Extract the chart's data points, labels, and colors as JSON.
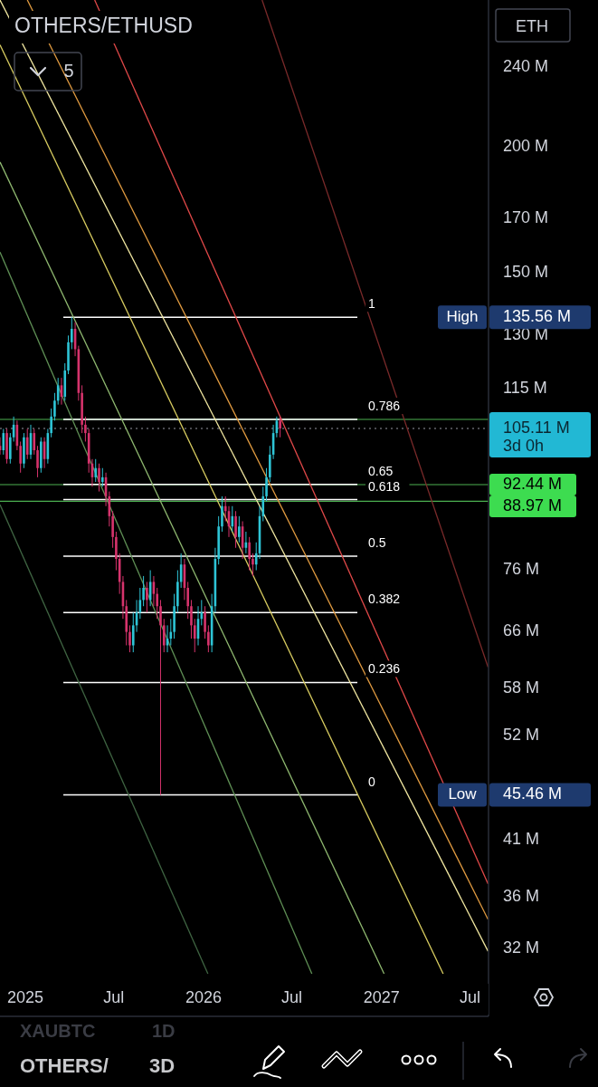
{
  "chart_data": {
    "type": "candlestick",
    "title": "OTHERS/ETHUSD",
    "log": true,
    "xlim": [
      "2024-11-10",
      "2027-08-08"
    ],
    "xticks": [
      {
        "value": "2025-01-01",
        "label": "2025"
      },
      {
        "value": "2025-07-01",
        "label": "Jul"
      },
      {
        "value": "2026-01-01",
        "label": "2026"
      },
      {
        "value": "2026-07-01",
        "label": "Jul"
      },
      {
        "value": "2027-01-01",
        "label": "2027"
      },
      {
        "value": "2027-07-01",
        "label": "Jul"
      }
    ],
    "ylim": [
      27.4,
      280
    ],
    "yticks": [
      {
        "value": 32,
        "label": "32 M"
      },
      {
        "value": 36,
        "label": "36 M"
      },
      {
        "value": 41,
        "label": "41 M"
      },
      {
        "value": 52,
        "label": "52 M"
      },
      {
        "value": 58,
        "label": "58 M"
      },
      {
        "value": 66,
        "label": "66 M"
      },
      {
        "value": 76,
        "label": "76 M"
      },
      {
        "value": 115,
        "label": "115 M"
      },
      {
        "value": 130,
        "label": "130 M"
      },
      {
        "value": 150,
        "label": "150 M"
      },
      {
        "value": 170,
        "label": "170 M"
      },
      {
        "value": 200,
        "label": "200 M"
      },
      {
        "value": 240,
        "label": "240 M"
      }
    ],
    "x": [
      "2024-11-10",
      "2024-11-17",
      "2024-11-24",
      "2024-12-01",
      "2024-12-08",
      "2024-12-15",
      "2024-12-22",
      "2024-12-29",
      "2025-01-05",
      "2025-01-12",
      "2025-01-19",
      "2025-01-26",
      "2025-02-02",
      "2025-02-09",
      "2025-02-16",
      "2025-02-23",
      "2025-03-02",
      "2025-03-09",
      "2025-03-16",
      "2025-03-23",
      "2025-03-30",
      "2025-04-06",
      "2025-04-13",
      "2025-04-20",
      "2025-04-27",
      "2025-05-04",
      "2025-05-11",
      "2025-05-18",
      "2025-05-25",
      "2025-06-01",
      "2025-06-08",
      "2025-06-15",
      "2025-06-22",
      "2025-06-29",
      "2025-07-06",
      "2025-07-13",
      "2025-07-20",
      "2025-07-27",
      "2025-08-03",
      "2025-08-10",
      "2025-08-17",
      "2025-08-24",
      "2025-08-31",
      "2025-09-07",
      "2025-09-14",
      "2025-09-21",
      "2025-09-28",
      "2025-10-05",
      "2025-10-12",
      "2025-10-19",
      "2025-10-26",
      "2025-11-02",
      "2025-11-09",
      "2025-11-16",
      "2025-11-23",
      "2025-11-30",
      "2025-12-07",
      "2025-12-14",
      "2025-12-21",
      "2025-12-28",
      "2026-01-04",
      "2026-01-11",
      "2026-01-18",
      "2026-01-25",
      "2026-02-01",
      "2026-02-08",
      "2026-02-15",
      "2026-02-22",
      "2026-03-01",
      "2026-03-08",
      "2026-03-15",
      "2026-03-22",
      "2026-03-29",
      "2026-04-05",
      "2026-04-12",
      "2026-04-19",
      "2026-04-26",
      "2026-05-03",
      "2026-05-10",
      "2026-05-17",
      "2026-05-24",
      "2026-05-31",
      "2026-06-07"
    ],
    "ohlc": [
      [
        101,
        103,
        99,
        100
      ],
      [
        100,
        105,
        99,
        104
      ],
      [
        104,
        105,
        97,
        98
      ],
      [
        98,
        104,
        97,
        103
      ],
      [
        103,
        108,
        102,
        106
      ],
      [
        106,
        107,
        100,
        101
      ],
      [
        101,
        102,
        95,
        97
      ],
      [
        97,
        104,
        96,
        103
      ],
      [
        103,
        105,
        98,
        99
      ],
      [
        99,
        106,
        98,
        104
      ],
      [
        104,
        105,
        99,
        100
      ],
      [
        100,
        101,
        94,
        96
      ],
      [
        96,
        103,
        95,
        102
      ],
      [
        102,
        103,
        96,
        98
      ],
      [
        98,
        105,
        97,
        104
      ],
      [
        104,
        110,
        103,
        108
      ],
      [
        108,
        114,
        107,
        112
      ],
      [
        112,
        118,
        111,
        116
      ],
      [
        116,
        118,
        111,
        113
      ],
      [
        113,
        122,
        112,
        120
      ],
      [
        120,
        130,
        119,
        128
      ],
      [
        128,
        135.56,
        126,
        132
      ],
      [
        132,
        134,
        124,
        126
      ],
      [
        126,
        127,
        112,
        114
      ],
      [
        114,
        116,
        104,
        106
      ],
      [
        106,
        108,
        102,
        104
      ],
      [
        104,
        105,
        95,
        97
      ],
      [
        97,
        98,
        92,
        94
      ],
      [
        94,
        98,
        93,
        96
      ],
      [
        96,
        97,
        91,
        93
      ],
      [
        93,
        96,
        92,
        94
      ],
      [
        94,
        95,
        88,
        90
      ],
      [
        90,
        91,
        84,
        86
      ],
      [
        86,
        87,
        80,
        82
      ],
      [
        82,
        83,
        76,
        78
      ],
      [
        78,
        79,
        72,
        74
      ],
      [
        74,
        75,
        68,
        70
      ],
      [
        70,
        71,
        64,
        66
      ],
      [
        66,
        67,
        63,
        64
      ],
      [
        64,
        69,
        63,
        67
      ],
      [
        67,
        71,
        66,
        69
      ],
      [
        69,
        73,
        68,
        71
      ],
      [
        71,
        75,
        70,
        73
      ],
      [
        73,
        74,
        69,
        71
      ],
      [
        71,
        76,
        70,
        74
      ],
      [
        74,
        75,
        70,
        72
      ],
      [
        72,
        73,
        68,
        70
      ],
      [
        70,
        71,
        45.46,
        67
      ],
      [
        67,
        68,
        63,
        64
      ],
      [
        64,
        67,
        63,
        65
      ],
      [
        65,
        68,
        64,
        66
      ],
      [
        66,
        72,
        65,
        70
      ],
      [
        70,
        76,
        69,
        74
      ],
      [
        74,
        79,
        73,
        77
      ],
      [
        77,
        78,
        71,
        73
      ],
      [
        73,
        74,
        68,
        70
      ],
      [
        70,
        71,
        65,
        67
      ],
      [
        67,
        68,
        63,
        65
      ],
      [
        65,
        70,
        64,
        68
      ],
      [
        68,
        71,
        67,
        69
      ],
      [
        69,
        70,
        65,
        66
      ],
      [
        66,
        67,
        63,
        64
      ],
      [
        64,
        72,
        63,
        70
      ],
      [
        70,
        80,
        69,
        78
      ],
      [
        78,
        86,
        77,
        84
      ],
      [
        84,
        90,
        83,
        88
      ],
      [
        88,
        90,
        85,
        87
      ],
      [
        87,
        88,
        82,
        84
      ],
      [
        84,
        88,
        83,
        86
      ],
      [
        86,
        87,
        80,
        82
      ],
      [
        82,
        86,
        81,
        84
      ],
      [
        84,
        85,
        78,
        80
      ],
      [
        80,
        83,
        79,
        81
      ],
      [
        81,
        82,
        76,
        78
      ],
      [
        78,
        79,
        75,
        77
      ],
      [
        77,
        81,
        76,
        79
      ],
      [
        79,
        88,
        78,
        86
      ],
      [
        86,
        92,
        85,
        90
      ],
      [
        90,
        96,
        89,
        94
      ],
      [
        94,
        101,
        93,
        99
      ],
      [
        99,
        106,
        98,
        104
      ],
      [
        104,
        108,
        103,
        107
      ],
      [
        107,
        108,
        103,
        105.11
      ]
    ],
    "series": [
      {
        "type": "line",
        "color": "#7a2a2a",
        "x": [
          "2026-05-01",
          "2027-08-07"
        ],
        "values": [
          280,
          60.9
        ]
      },
      {
        "type": "line",
        "color": "#e04848",
        "x": [
          "2025-05-23",
          "2027-08-07"
        ],
        "values": [
          280,
          37.1
        ]
      },
      {
        "type": "line",
        "color": "#e09a40",
        "x": [
          "2025-01-05",
          "2027-08-07"
        ],
        "values": [
          280,
          34.2
        ]
      },
      {
        "type": "line",
        "color": "#f0e6a0",
        "x": [
          "2024-11-10",
          "2027-08-07"
        ],
        "values": [
          280,
          31.8
        ]
      },
      {
        "type": "line",
        "color": "#d8cc60",
        "x": [
          "2024-11-10",
          "2027-05-07"
        ],
        "values": [
          252.7,
          30.2
        ]
      },
      {
        "type": "line",
        "color": "#8fb870",
        "x": [
          "2024-11-10",
          "2027-01-06"
        ],
        "values": [
          193.3,
          30.2
        ]
      },
      {
        "type": "line",
        "color": "#5f8f55",
        "x": [
          "2024-11-10",
          "2026-08-11"
        ],
        "values": [
          157.3,
          30.2
        ]
      },
      {
        "type": "line",
        "color": "#3f6442",
        "x": [
          "2024-11-10",
          "2026-01-10"
        ],
        "values": [
          88.3,
          30.2
        ]
      }
    ],
    "ref_lines": [
      {
        "axis": "y",
        "value": 107.3,
        "color": "#4caf50"
      },
      {
        "axis": "y",
        "value": 92.44,
        "color": "#4caf50",
        "label": "92.44 M"
      },
      {
        "axis": "y",
        "value": 88.97,
        "color": "#4caf50",
        "label": "88.97 M"
      },
      {
        "axis": "y",
        "value": 105.11,
        "color": "#9598a1",
        "line_style": "dotted"
      },
      {
        "axis": "y",
        "value": 135.56,
        "color": "#ffffff"
      },
      {
        "axis": "y",
        "value": 107.3,
        "color": "#ffffff"
      },
      {
        "axis": "y",
        "value": 92.47,
        "color": "#ffffff"
      },
      {
        "axis": "y",
        "value": 89.31,
        "color": "#ffffff"
      },
      {
        "axis": "y",
        "value": 78.5,
        "color": "#ffffff"
      },
      {
        "axis": "y",
        "value": 69.0,
        "color": "#ffffff"
      },
      {
        "axis": "y",
        "value": 58.8,
        "color": "#ffffff"
      },
      {
        "axis": "y",
        "value": 45.46,
        "color": "#ffffff"
      }
    ],
    "annotations": [
      "ETH",
      "5",
      "XAUBTC",
      "1D",
      "OTHERS/",
      "3D",
      "High",
      "135.56 M",
      "Low",
      "45.46 M",
      "105.11 M",
      "3d 0h",
      "1",
      "0.786",
      "0.65",
      "0.618",
      "0.5",
      "0.382",
      "0.236",
      "0"
    ]
  }
}
